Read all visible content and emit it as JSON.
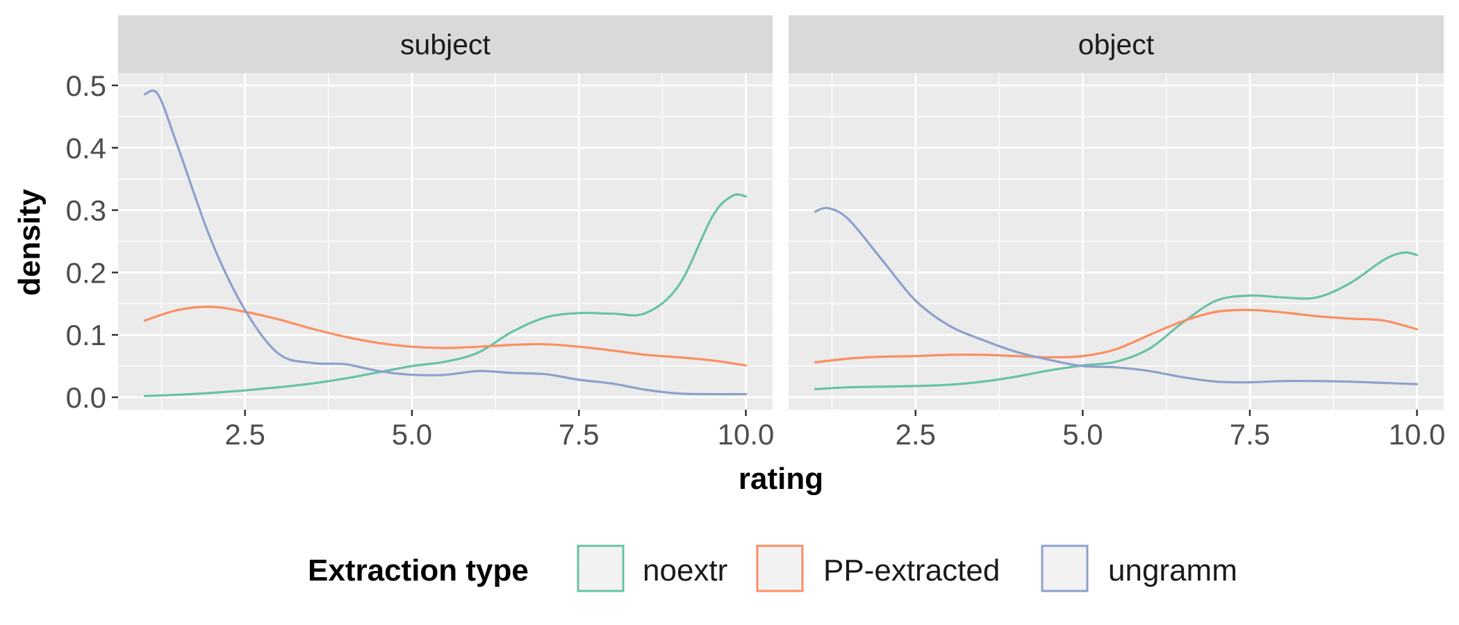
{
  "chart_data": {
    "type": "line",
    "xlabel": "rating",
    "ylabel": "density",
    "xlim": [
      0.6,
      10.4
    ],
    "ylim": [
      -0.02,
      0.52
    ],
    "x_ticks": [
      2.5,
      5.0,
      7.5,
      10.0
    ],
    "x_tick_labels": [
      "2.5",
      "5.0",
      "7.5",
      "10.0"
    ],
    "y_ticks": [
      0.0,
      0.1,
      0.2,
      0.3,
      0.4,
      0.5
    ],
    "y_tick_labels": [
      "0.0",
      "0.1",
      "0.2",
      "0.3",
      "0.4",
      "0.5"
    ],
    "grid": true,
    "legend": {
      "title": "Extraction type",
      "position": "bottom",
      "entries": [
        {
          "label": "noextr",
          "color": "#66c2a5"
        },
        {
          "label": "PP-extracted",
          "color": "#fc8d62"
        },
        {
          "label": "ungramm",
          "color": "#8da0cb"
        }
      ]
    },
    "panels": [
      {
        "title": "subject",
        "series": [
          {
            "name": "noextr",
            "color": "#66c2a5",
            "x": [
              1.0,
              1.5,
              2.0,
              2.5,
              3.0,
              3.5,
              4.0,
              4.5,
              5.0,
              5.5,
              6.0,
              6.5,
              7.0,
              7.5,
              8.0,
              8.5,
              9.0,
              9.5,
              9.8,
              10.0
            ],
            "y": [
              0.002,
              0.004,
              0.007,
              0.011,
              0.016,
              0.022,
              0.03,
              0.04,
              0.05,
              0.057,
              0.072,
              0.105,
              0.128,
              0.135,
              0.134,
              0.135,
              0.18,
              0.29,
              0.323,
              0.322
            ]
          },
          {
            "name": "PP-extracted",
            "color": "#fc8d62",
            "x": [
              1.0,
              1.5,
              2.0,
              2.5,
              3.0,
              3.5,
              4.0,
              4.5,
              5.0,
              5.5,
              6.0,
              6.5,
              7.0,
              7.5,
              8.0,
              8.5,
              9.0,
              9.5,
              10.0
            ],
            "y": [
              0.123,
              0.14,
              0.145,
              0.137,
              0.125,
              0.11,
              0.097,
              0.087,
              0.081,
              0.079,
              0.081,
              0.084,
              0.085,
              0.081,
              0.075,
              0.068,
              0.064,
              0.059,
              0.051
            ]
          },
          {
            "name": "ungramm",
            "color": "#8da0cb",
            "x": [
              1.0,
              1.2,
              1.5,
              2.0,
              2.5,
              3.0,
              3.5,
              4.0,
              4.5,
              5.0,
              5.5,
              6.0,
              6.5,
              7.0,
              7.5,
              8.0,
              8.5,
              9.0,
              9.5,
              10.0
            ],
            "y": [
              0.486,
              0.485,
              0.4,
              0.25,
              0.14,
              0.07,
              0.055,
              0.053,
              0.042,
              0.036,
              0.036,
              0.042,
              0.039,
              0.037,
              0.028,
              0.022,
              0.012,
              0.006,
              0.005,
              0.005
            ]
          }
        ]
      },
      {
        "title": "object",
        "series": [
          {
            "name": "noextr",
            "color": "#66c2a5",
            "x": [
              1.0,
              1.5,
              2.0,
              2.5,
              3.0,
              3.5,
              4.0,
              4.5,
              5.0,
              5.5,
              6.0,
              6.5,
              7.0,
              7.5,
              8.0,
              8.5,
              9.0,
              9.5,
              9.8,
              10.0
            ],
            "y": [
              0.013,
              0.016,
              0.017,
              0.018,
              0.02,
              0.025,
              0.033,
              0.043,
              0.051,
              0.057,
              0.078,
              0.12,
              0.155,
              0.163,
              0.16,
              0.16,
              0.183,
              0.22,
              0.232,
              0.228
            ]
          },
          {
            "name": "PP-extracted",
            "color": "#fc8d62",
            "x": [
              1.0,
              1.5,
              2.0,
              2.5,
              3.0,
              3.5,
              4.0,
              4.5,
              5.0,
              5.5,
              6.0,
              6.5,
              7.0,
              7.5,
              8.0,
              8.5,
              9.0,
              9.5,
              10.0
            ],
            "y": [
              0.056,
              0.062,
              0.065,
              0.066,
              0.068,
              0.068,
              0.066,
              0.064,
              0.066,
              0.077,
              0.1,
              0.122,
              0.137,
              0.14,
              0.136,
              0.13,
              0.126,
              0.123,
              0.109
            ]
          },
          {
            "name": "ungramm",
            "color": "#8da0cb",
            "x": [
              1.0,
              1.2,
              1.5,
              2.0,
              2.5,
              3.0,
              3.5,
              4.0,
              4.5,
              5.0,
              5.5,
              6.0,
              6.5,
              7.0,
              7.5,
              8.0,
              8.5,
              9.0,
              9.5,
              10.0
            ],
            "y": [
              0.298,
              0.303,
              0.285,
              0.22,
              0.155,
              0.115,
              0.092,
              0.073,
              0.06,
              0.05,
              0.048,
              0.042,
              0.032,
              0.025,
              0.024,
              0.026,
              0.026,
              0.025,
              0.023,
              0.021
            ]
          }
        ]
      }
    ]
  }
}
